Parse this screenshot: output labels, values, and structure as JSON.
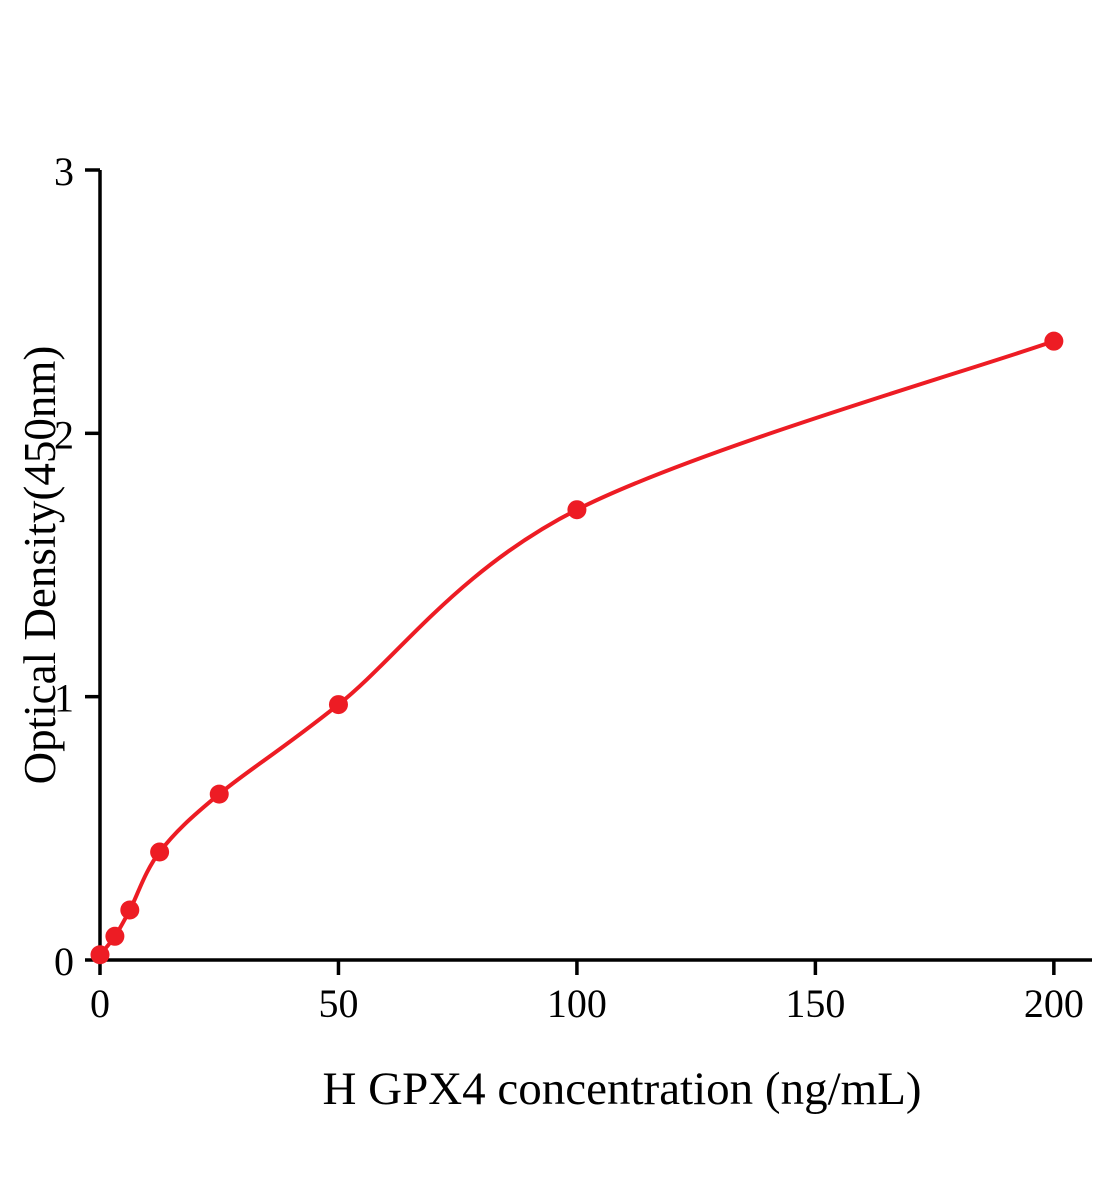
{
  "figure": {
    "background_color": "#ffffff",
    "axis_color": "#000000",
    "accent_color": "#ed1c24"
  },
  "chart_data": {
    "type": "scatter",
    "title": "",
    "xlabel": "H GPX4 concentration (ng/mL)",
    "ylabel": "Optical Density(450nm)",
    "x": [
      0,
      3.125,
      6.25,
      12.5,
      25,
      50,
      100,
      200
    ],
    "y": [
      0.02,
      0.09,
      0.19,
      0.41,
      0.63,
      0.97,
      1.71,
      2.35
    ],
    "fit_curve": true,
    "point_color": "#ed1c24",
    "line_color": "#ed1c24",
    "xlim": [
      0,
      208
    ],
    "ylim": [
      0,
      3
    ],
    "xticks": [
      0,
      50,
      100,
      150,
      200
    ],
    "yticks": [
      0,
      1,
      2,
      3
    ],
    "grid": false,
    "legend": null
  }
}
